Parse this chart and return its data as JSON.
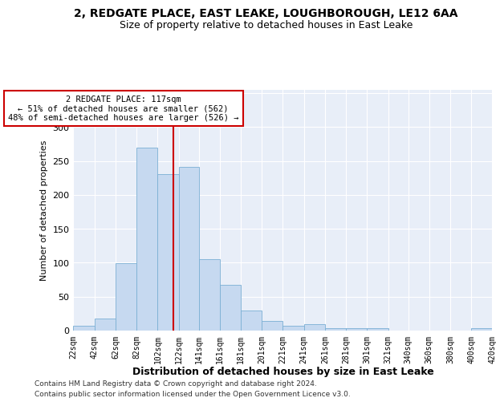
{
  "title_line1": "2, REDGATE PLACE, EAST LEAKE, LOUGHBOROUGH, LE12 6AA",
  "title_line2": "Size of property relative to detached houses in East Leake",
  "xlabel": "Distribution of detached houses by size in East Leake",
  "ylabel": "Number of detached properties",
  "footer_line1": "Contains HM Land Registry data © Crown copyright and database right 2024.",
  "footer_line2": "Contains public sector information licensed under the Open Government Licence v3.0.",
  "annotation_line1": "2 REDGATE PLACE: 117sqm",
  "annotation_line2": "← 51% of detached houses are smaller (562)",
  "annotation_line3": "48% of semi-detached houses are larger (526) →",
  "property_size": 117,
  "bin_edges": [
    22,
    42,
    62,
    82,
    102,
    122,
    141,
    161,
    181,
    201,
    221,
    241,
    261,
    281,
    301,
    321,
    340,
    360,
    380,
    400,
    420
  ],
  "bar_values": [
    7,
    18,
    99,
    270,
    231,
    241,
    105,
    67,
    30,
    14,
    7,
    10,
    4,
    4,
    3,
    0,
    0,
    0,
    0,
    3
  ],
  "bar_color": "#c6d9f0",
  "bar_edge_color": "#7bafd4",
  "vline_color": "#cc0000",
  "vline_x": 117,
  "bg_color": "#ffffff",
  "plot_bg_color": "#e8eef8",
  "grid_color": "#ffffff",
  "annotation_box_color": "#ffffff",
  "annotation_box_edge": "#cc0000",
  "ylim": [
    0,
    355
  ],
  "title_fontsize": 10,
  "subtitle_fontsize": 9,
  "xlabel_fontsize": 9,
  "ylabel_fontsize": 8,
  "footer_fontsize": 6.5,
  "tick_fontsize": 7,
  "tick_labels": [
    "22sqm",
    "42sqm",
    "62sqm",
    "82sqm",
    "102sqm",
    "122sqm",
    "141sqm",
    "161sqm",
    "181sqm",
    "201sqm",
    "221sqm",
    "241sqm",
    "261sqm",
    "281sqm",
    "301sqm",
    "321sqm",
    "340sqm",
    "360sqm",
    "380sqm",
    "400sqm",
    "420sqm"
  ]
}
